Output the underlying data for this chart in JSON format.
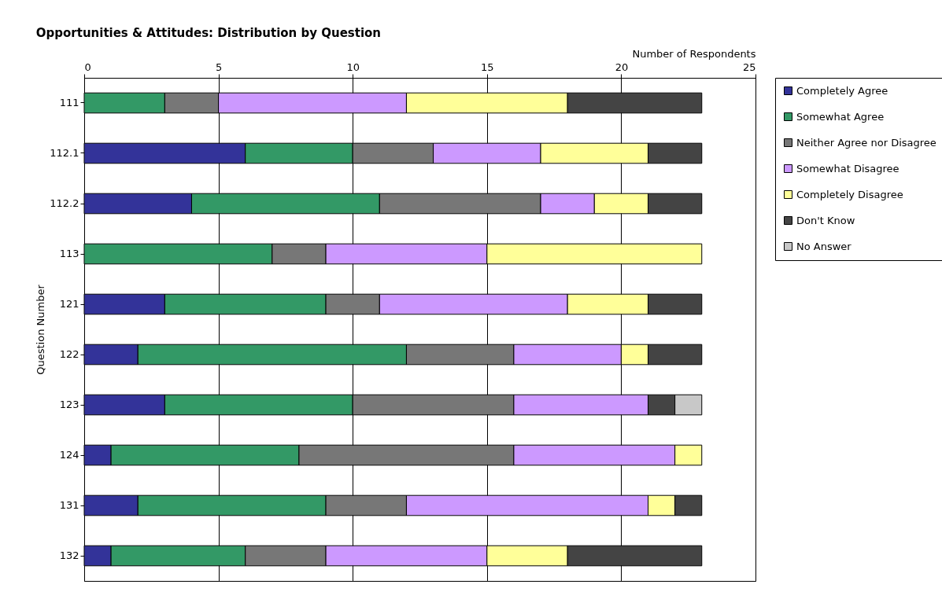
{
  "chart_data": {
    "type": "bar",
    "orientation": "horizontal",
    "stacked": true,
    "title": "Opportunities & Attitudes: Distribution by Question",
    "xlabel": "Number of Respondents",
    "ylabel": "Question Number",
    "categories": [
      "111",
      "112.1",
      "112.2",
      "113",
      "121",
      "122",
      "123",
      "124",
      "131",
      "132"
    ],
    "xlim": [
      0,
      25
    ],
    "xticks": [
      0,
      5,
      10,
      15,
      20,
      25
    ],
    "grid": "x",
    "legend": "right",
    "series": [
      {
        "name": "Completely Agree",
        "color": "#333399",
        "values": [
          0,
          6,
          4,
          0,
          3,
          2,
          3,
          1,
          2,
          1
        ]
      },
      {
        "name": "Somewhat Agree",
        "color": "#339966",
        "values": [
          3,
          4,
          7,
          7,
          6,
          10,
          7,
          7,
          7,
          5
        ]
      },
      {
        "name": "Neither Agree nor Disagree",
        "color": "#777777",
        "values": [
          2,
          3,
          6,
          2,
          2,
          4,
          6,
          8,
          3,
          3
        ]
      },
      {
        "name": "Somewhat Disagree",
        "color": "#cc99ff",
        "values": [
          7,
          4,
          2,
          6,
          7,
          4,
          5,
          6,
          9,
          6
        ]
      },
      {
        "name": "Completely Disagree",
        "color": "#ffff99",
        "values": [
          6,
          4,
          2,
          8,
          3,
          1,
          0,
          1,
          1,
          3
        ]
      },
      {
        "name": "Don't Know",
        "color": "#444444",
        "values": [
          5,
          2,
          2,
          0,
          2,
          2,
          1,
          0,
          1,
          5
        ]
      },
      {
        "name": "No Answer",
        "color": "#c8c8c8",
        "values": [
          0,
          0,
          0,
          0,
          0,
          0,
          1,
          0,
          0,
          0
        ]
      }
    ]
  }
}
